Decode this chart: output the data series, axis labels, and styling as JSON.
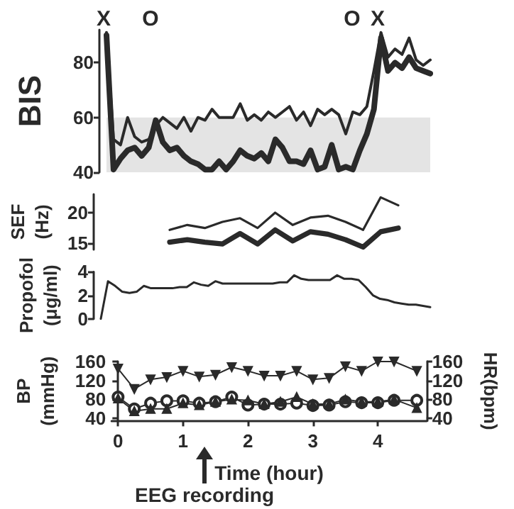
{
  "chart_data": [
    {
      "type": "line",
      "ylabel": "BIS",
      "ylim": [
        40,
        92
      ],
      "yticks": [
        40,
        60,
        80
      ],
      "tick_labels": "y",
      "grid": false,
      "annotations": [
        "X",
        "O",
        "O",
        "X"
      ],
      "bands": [
        {
          "axis": "y",
          "from": 40,
          "to": 60,
          "color": "#e4e4e4"
        }
      ],
      "categories": [
        null,
        null,
        null,
        null,
        null,
        null,
        null,
        null,
        null,
        null,
        null,
        null,
        null,
        null,
        null,
        null,
        null,
        null,
        null,
        null,
        null,
        null,
        null,
        null,
        null,
        null,
        null,
        null,
        null,
        null,
        null,
        null,
        null,
        null,
        null,
        null,
        null,
        null,
        null,
        null,
        null,
        null,
        null,
        null,
        null,
        null,
        null
      ],
      "series": [
        {
          "color": "#2a2a2a",
          "values": [
            91,
            52,
            50,
            60,
            53,
            51,
            52,
            57,
            60,
            58,
            56,
            60,
            55,
            60,
            59,
            63,
            60,
            60,
            60,
            65,
            59,
            61,
            59,
            62,
            60,
            62,
            64,
            59,
            62,
            57,
            63,
            61,
            63,
            61,
            54,
            62,
            61,
            64,
            77,
            91,
            82,
            85,
            83,
            89,
            81,
            79,
            81
          ]
        },
        {
          "color": "#2a2a2a",
          "values": [
            90,
            41,
            45,
            48,
            49,
            46,
            49,
            59,
            51,
            48,
            49,
            46,
            44,
            43,
            41,
            41,
            44,
            41,
            44,
            48,
            46,
            45,
            47,
            44,
            52,
            49,
            44,
            44,
            43,
            48,
            41,
            42,
            50,
            41,
            42,
            41,
            48,
            54,
            63,
            89,
            77,
            80,
            78,
            82,
            78,
            77,
            76
          ]
        }
      ]
    },
    {
      "type": "line",
      "ylabel": "SEF\n(Hz)",
      "ylim": [
        14,
        23
      ],
      "yticks": [
        15,
        20
      ],
      "tick_labels": "y",
      "grid": false,
      "categories": [
        null,
        null,
        null,
        null,
        null,
        null,
        null,
        null,
        null,
        null,
        null,
        null,
        null,
        null
      ],
      "series": [
        {
          "color": "#2a2a2a",
          "values": [
            17.2,
            18,
            17.5,
            18.5,
            19.1,
            17.5,
            20,
            18,
            19.2,
            19.5,
            18.5,
            17.2,
            22.5,
            21.2
          ]
        },
        {
          "color": "#2a2a2a",
          "values": [
            15.2,
            15.6,
            15.2,
            14.9,
            16.6,
            14.9,
            17.2,
            15.4,
            16.9,
            16.5,
            15.6,
            14.4,
            16.9,
            17.5
          ]
        }
      ]
    },
    {
      "type": "line",
      "ylabel": "Propofol\n(μg/ml)",
      "ylim": [
        0,
        4
      ],
      "yticks": [
        0,
        2,
        4
      ],
      "tick_labels": "y",
      "grid": false,
      "categories": [
        null,
        null,
        null,
        null,
        null,
        null,
        null,
        null,
        null,
        null,
        null,
        null,
        null,
        null,
        null,
        null,
        null,
        null,
        null,
        null,
        null,
        null,
        null,
        null,
        null,
        null,
        null,
        null,
        null,
        null,
        null,
        null,
        null,
        null,
        null,
        null,
        null,
        null,
        null,
        null,
        null,
        null,
        null,
        null,
        null,
        null,
        null
      ],
      "series": [
        {
          "color": "#2a2a2a",
          "values": [
            0,
            3.2,
            2.8,
            2.3,
            2.2,
            2.3,
            2.8,
            2.6,
            2.6,
            2.6,
            2.6,
            2.7,
            2.7,
            3.1,
            2.9,
            2.8,
            3.2,
            3.0,
            3.0,
            3.0,
            3.0,
            3.0,
            3.0,
            3.0,
            3.0,
            3.1,
            3.1,
            3.7,
            3.4,
            3.3,
            3.3,
            3.3,
            3.3,
            3.7,
            3.4,
            3.4,
            3.3,
            2.7,
            2.0,
            1.7,
            1.6,
            1.4,
            1.3,
            1.2,
            1.2,
            1.1,
            1.0
          ]
        }
      ]
    },
    {
      "type": "line",
      "xlabel": "Time (hour)",
      "ylabel": "BP\n(mmHg)",
      "y2label": "HR(bpm)",
      "xlim": [
        -0.1,
        4.75
      ],
      "xticks": [
        0,
        1,
        2,
        3,
        4
      ],
      "ylim": [
        35,
        160
      ],
      "yticks": [
        40,
        80,
        120,
        160
      ],
      "y2lim": [
        35,
        160
      ],
      "y2ticks": [
        40,
        80,
        120,
        160
      ],
      "grid": false,
      "annotations": [
        "EEG recording"
      ],
      "x": [
        0,
        0.25,
        0.5,
        0.75,
        1,
        1.25,
        1.5,
        1.75,
        2,
        2.25,
        2.5,
        2.75,
        3,
        3.25,
        3.5,
        3.75,
        4,
        4.25,
        4.6
      ],
      "series": [
        {
          "color": "#2a2a2a",
          "marker": "triangle-down",
          "values": [
            145,
            102,
            122,
            127,
            140,
            128,
            132,
            148,
            140,
            130,
            130,
            140,
            122,
            125,
            150,
            140,
            160,
            160,
            140
          ]
        },
        {
          "color": "#2a2a2a",
          "marker": "circle",
          "values": [
            85,
            60,
            72,
            77,
            77,
            72,
            75,
            85,
            68,
            70,
            70,
            72,
            67,
            68,
            75,
            73,
            73,
            78,
            78
          ]
        },
        {
          "color": "#2a2a2a",
          "marker": "triangle",
          "values": [
            82,
            55,
            60,
            60,
            72,
            68,
            75,
            80,
            78,
            70,
            75,
            85,
            70,
            70,
            80,
            75,
            75,
            80,
            62
          ]
        }
      ]
    }
  ]
}
